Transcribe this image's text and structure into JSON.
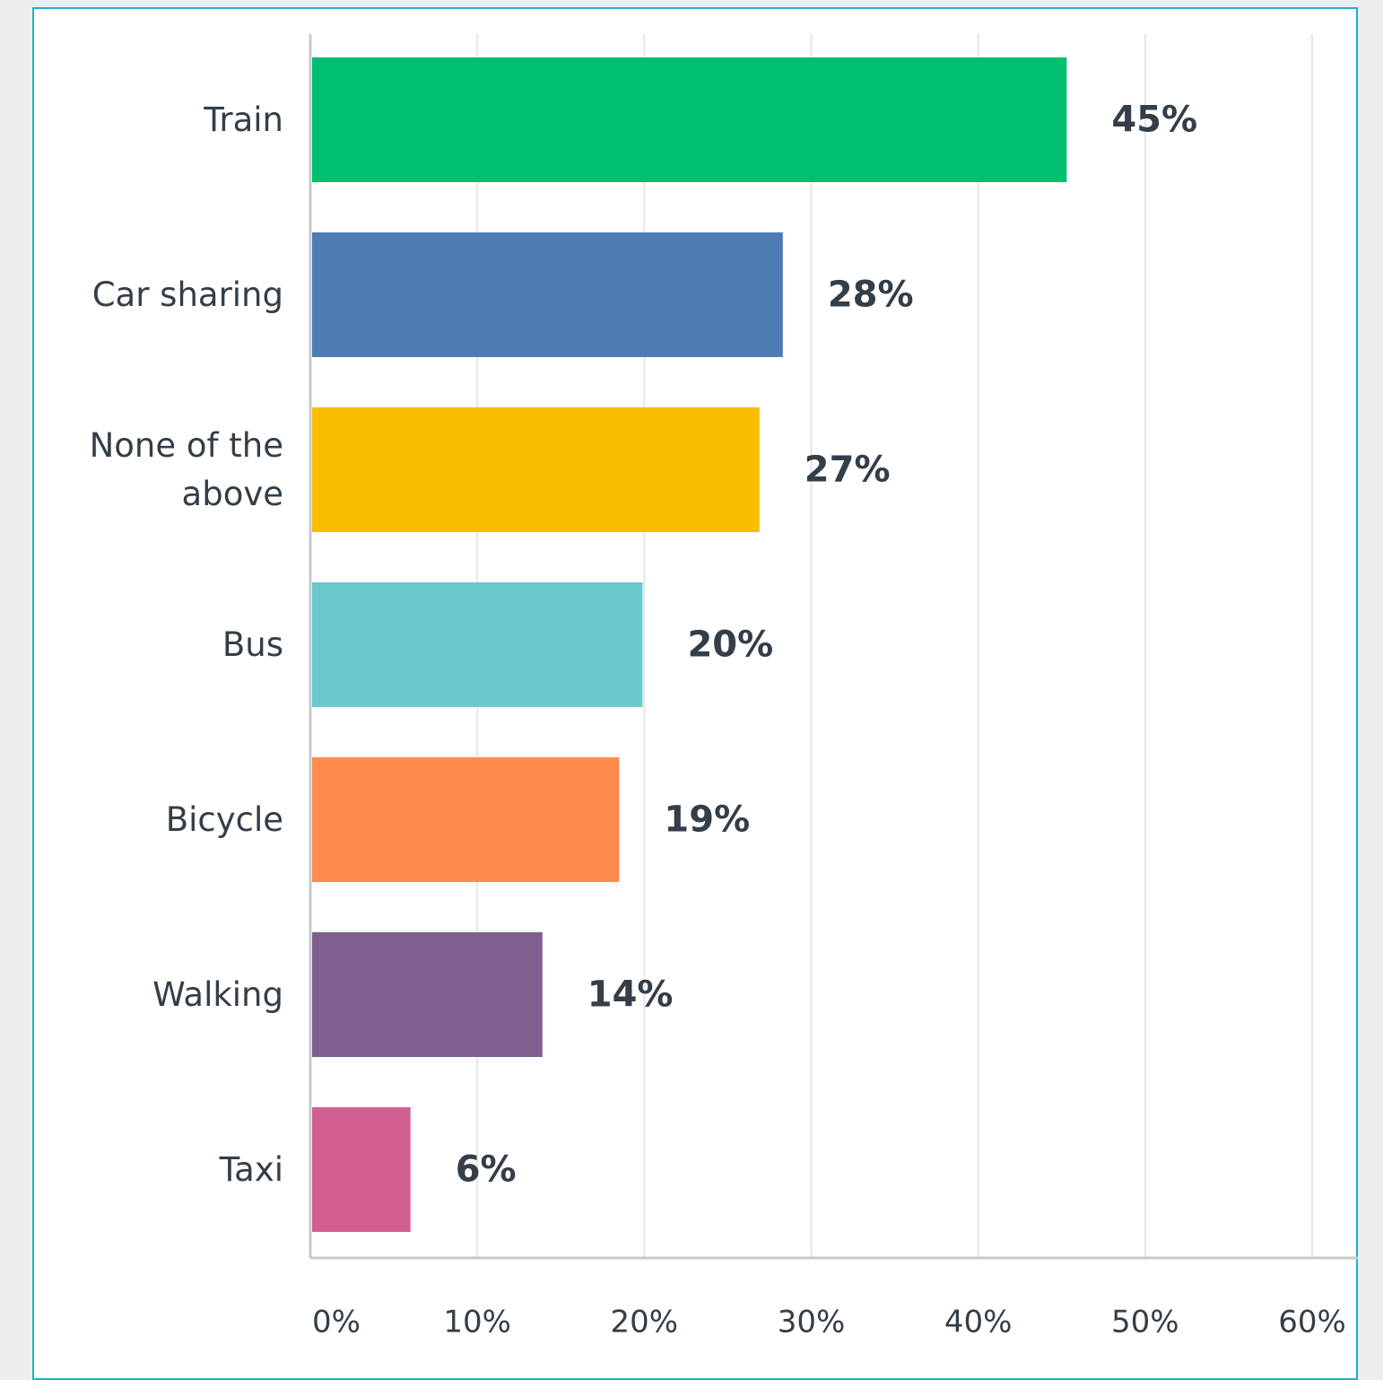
{
  "chart_data": {
    "type": "bar",
    "orientation": "horizontal",
    "categories": [
      "Train",
      "Car sharing",
      "None of the above",
      "Bus",
      "Bicycle",
      "Walking",
      "Taxi"
    ],
    "values": [
      45.3,
      28.3,
      26.9,
      19.9,
      18.5,
      13.9,
      6.0
    ],
    "value_labels": [
      "45%",
      "28%",
      "27%",
      "20%",
      "19%",
      "14%",
      "6%"
    ],
    "colors": [
      "#00bf6f",
      "#507cb6",
      "#f9be00",
      "#6bc8cd",
      "#ff8b4f",
      "#7f5f8f",
      "#d25f90"
    ],
    "xlim": [
      0,
      60
    ],
    "xticks": [
      {
        "value": 0,
        "label": "0%"
      },
      {
        "value": 10,
        "label": "10%"
      },
      {
        "value": 20,
        "label": "20%"
      },
      {
        "value": 30,
        "label": "30%"
      },
      {
        "value": 40,
        "label": "40%"
      },
      {
        "value": 50,
        "label": "50%"
      },
      {
        "value": 60,
        "label": "60%"
      }
    ],
    "grid": true
  }
}
